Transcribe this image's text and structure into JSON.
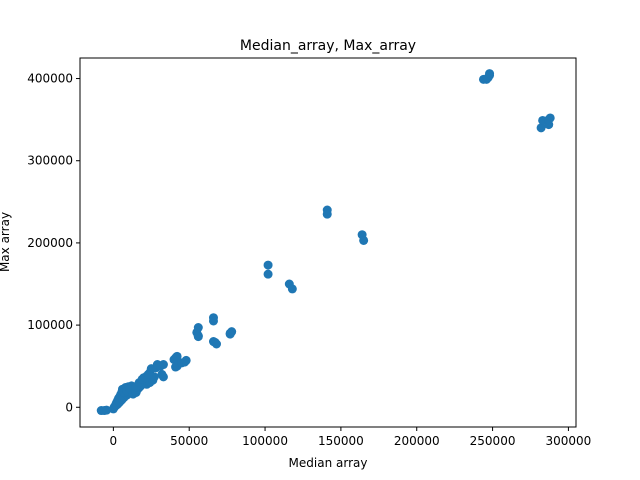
{
  "chart_data": {
    "type": "scatter",
    "title": "Median_array, Max_array",
    "xlabel": "Median array",
    "ylabel": "Max array",
    "xlim": [
      -22000,
      305000
    ],
    "ylim": [
      -24000,
      425000
    ],
    "xticks": [
      0,
      50000,
      100000,
      150000,
      200000,
      250000,
      300000
    ],
    "xtick_labels": [
      "0",
      "50000",
      "100000",
      "150000",
      "200000",
      "250000",
      "300000"
    ],
    "yticks": [
      0,
      100000,
      200000,
      300000,
      400000
    ],
    "ytick_labels": [
      "0",
      "100000",
      "200000",
      "300000",
      "400000"
    ],
    "grid": false,
    "legend": "none",
    "marker_color": "#1f77b4",
    "series": [
      {
        "points": [
          [
            -8000,
            -4000
          ],
          [
            -6000,
            -4000
          ],
          [
            -4500,
            -3500
          ],
          [
            0,
            -2000
          ],
          [
            500,
            0
          ],
          [
            1000,
            1000
          ],
          [
            1500,
            3000
          ],
          [
            2000,
            5000
          ],
          [
            2500,
            7000
          ],
          [
            3000,
            9000
          ],
          [
            3500,
            11000
          ],
          [
            4000,
            12000
          ],
          [
            4500,
            14000
          ],
          [
            5000,
            16000
          ],
          [
            5500,
            18000
          ],
          [
            6000,
            20000
          ],
          [
            2000,
            2500
          ],
          [
            3000,
            4000
          ],
          [
            4000,
            6000
          ],
          [
            5000,
            8000
          ],
          [
            6000,
            10000
          ],
          [
            7000,
            12000
          ],
          [
            8000,
            14000
          ],
          [
            9000,
            15000
          ],
          [
            10000,
            17000
          ],
          [
            11000,
            19000
          ],
          [
            12000,
            21000
          ],
          [
            13000,
            23000
          ],
          [
            14000,
            25000
          ],
          [
            6000,
            22000
          ],
          [
            8000,
            24000
          ],
          [
            10000,
            25000
          ],
          [
            12000,
            26000
          ],
          [
            7000,
            18000
          ],
          [
            9000,
            20000
          ],
          [
            11000,
            22000
          ],
          [
            13000,
            16000
          ],
          [
            15000,
            18000
          ],
          [
            16000,
            22000
          ],
          [
            17000,
            24000
          ],
          [
            18000,
            26000
          ],
          [
            19000,
            28000
          ],
          [
            20000,
            30000
          ],
          [
            21000,
            32000
          ],
          [
            20000,
            36000
          ],
          [
            22000,
            38000
          ],
          [
            24000,
            42000
          ],
          [
            25000,
            47000
          ],
          [
            22000,
            28000
          ],
          [
            24000,
            30000
          ],
          [
            26000,
            33000
          ],
          [
            27000,
            37000
          ],
          [
            28000,
            48000
          ],
          [
            29000,
            52000
          ],
          [
            31000,
            50000
          ],
          [
            33000,
            52000
          ],
          [
            32000,
            40000
          ],
          [
            33000,
            37000
          ],
          [
            15000,
            25000
          ],
          [
            17000,
            30000
          ],
          [
            19000,
            34000
          ],
          [
            21000,
            36000
          ],
          [
            23000,
            40000
          ],
          [
            40000,
            58000
          ],
          [
            41000,
            60000
          ],
          [
            42000,
            62000
          ],
          [
            41000,
            49000
          ],
          [
            42000,
            50000
          ],
          [
            45000,
            54000
          ],
          [
            47000,
            55000
          ],
          [
            48000,
            57000
          ],
          [
            55000,
            91000
          ],
          [
            56000,
            87000
          ],
          [
            56000,
            97000
          ],
          [
            56000,
            86000
          ],
          [
            66000,
            105000
          ],
          [
            66000,
            109000
          ],
          [
            66000,
            80000
          ],
          [
            67000,
            79000
          ],
          [
            68000,
            77000
          ],
          [
            77000,
            90000
          ],
          [
            78000,
            92000
          ],
          [
            77000,
            89000
          ],
          [
            102000,
            173000
          ],
          [
            102000,
            162000
          ],
          [
            116000,
            150000
          ],
          [
            118000,
            144000
          ],
          [
            141000,
            240000
          ],
          [
            141000,
            235000
          ],
          [
            164000,
            210000
          ],
          [
            165000,
            203000
          ],
          [
            244000,
            399000
          ],
          [
            246000,
            399000
          ],
          [
            247000,
            401000
          ],
          [
            248000,
            404000
          ],
          [
            248000,
            406000
          ],
          [
            282000,
            340000
          ],
          [
            283000,
            349000
          ],
          [
            287000,
            344000
          ],
          [
            288000,
            352000
          ],
          [
            287000,
            350000
          ]
        ]
      }
    ]
  }
}
